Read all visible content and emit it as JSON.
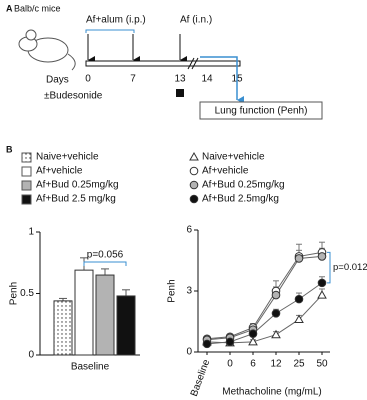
{
  "diagram": {
    "label": "A",
    "mouse_label": "Balb/c mice",
    "events": [
      "Af+alum (i.p.)",
      "Af (i.n.)"
    ],
    "days_label": "Days",
    "days": [
      "0",
      "7",
      "13",
      "14",
      "15"
    ],
    "treatment": "±Budesonide",
    "readout": "Lung function (Penh)"
  },
  "panel_b_label": "B",
  "chart_data": [
    {
      "type": "bar",
      "y_label": "Penh",
      "categories": [
        "Baseline"
      ],
      "ylim": [
        0,
        1
      ],
      "yticks": [
        0,
        0.5,
        1
      ],
      "annotation": "p=0.056",
      "series": [
        {
          "name": "Naive+vehicle",
          "color": "#ffffff",
          "pattern": "dots",
          "values": [
            0.44
          ],
          "errors": [
            0.02
          ]
        },
        {
          "name": "Af+vehicle",
          "color": "#ffffff",
          "values": [
            0.69
          ],
          "errors": [
            0.1
          ]
        },
        {
          "name": "Af+Bud 0.25mg/kg",
          "color": "#b3b3b3",
          "values": [
            0.65
          ],
          "errors": [
            0.05
          ]
        },
        {
          "name": "Af+Bud 2.5 mg/kg",
          "color": "#111111",
          "values": [
            0.48
          ],
          "errors": [
            0.05
          ]
        }
      ]
    },
    {
      "type": "line",
      "y_label": "Penh",
      "x_label": "Methacholine (mg/mL)",
      "categories": [
        "Baseline",
        "0",
        "6",
        "12",
        "25",
        "50"
      ],
      "ylim": [
        0,
        6
      ],
      "yticks": [
        0,
        3,
        6
      ],
      "annotation": "p=0.012",
      "series": [
        {
          "name": "Naive+vehicle",
          "color": "#ffffff",
          "marker": "triangle",
          "values": [
            0.5,
            0.45,
            0.5,
            0.85,
            1.6,
            2.8
          ],
          "errors": [
            0.05,
            0.05,
            0.1,
            0.15,
            0.2,
            0.3
          ]
        },
        {
          "name": "Af+vehicle",
          "color": "#ffffff",
          "marker": "circle",
          "values": [
            0.65,
            0.75,
            1.2,
            3.0,
            4.7,
            4.9
          ],
          "errors": [
            0.1,
            0.1,
            0.2,
            0.5,
            0.6,
            0.5
          ]
        },
        {
          "name": "Af+Bud 0.25mg/kg",
          "color": "#b3b3b3",
          "marker": "circle",
          "values": [
            0.6,
            0.7,
            1.1,
            2.8,
            4.6,
            4.7
          ],
          "errors": [
            0.1,
            0.1,
            0.2,
            0.4,
            0.4,
            0.4
          ]
        },
        {
          "name": "Af+Bud 2.5mg/kg",
          "color": "#111111",
          "marker": "circle",
          "values": [
            0.4,
            0.5,
            0.9,
            1.9,
            2.6,
            3.4
          ],
          "errors": [
            0.05,
            0.1,
            0.15,
            0.2,
            0.3,
            0.3
          ]
        }
      ]
    }
  ]
}
